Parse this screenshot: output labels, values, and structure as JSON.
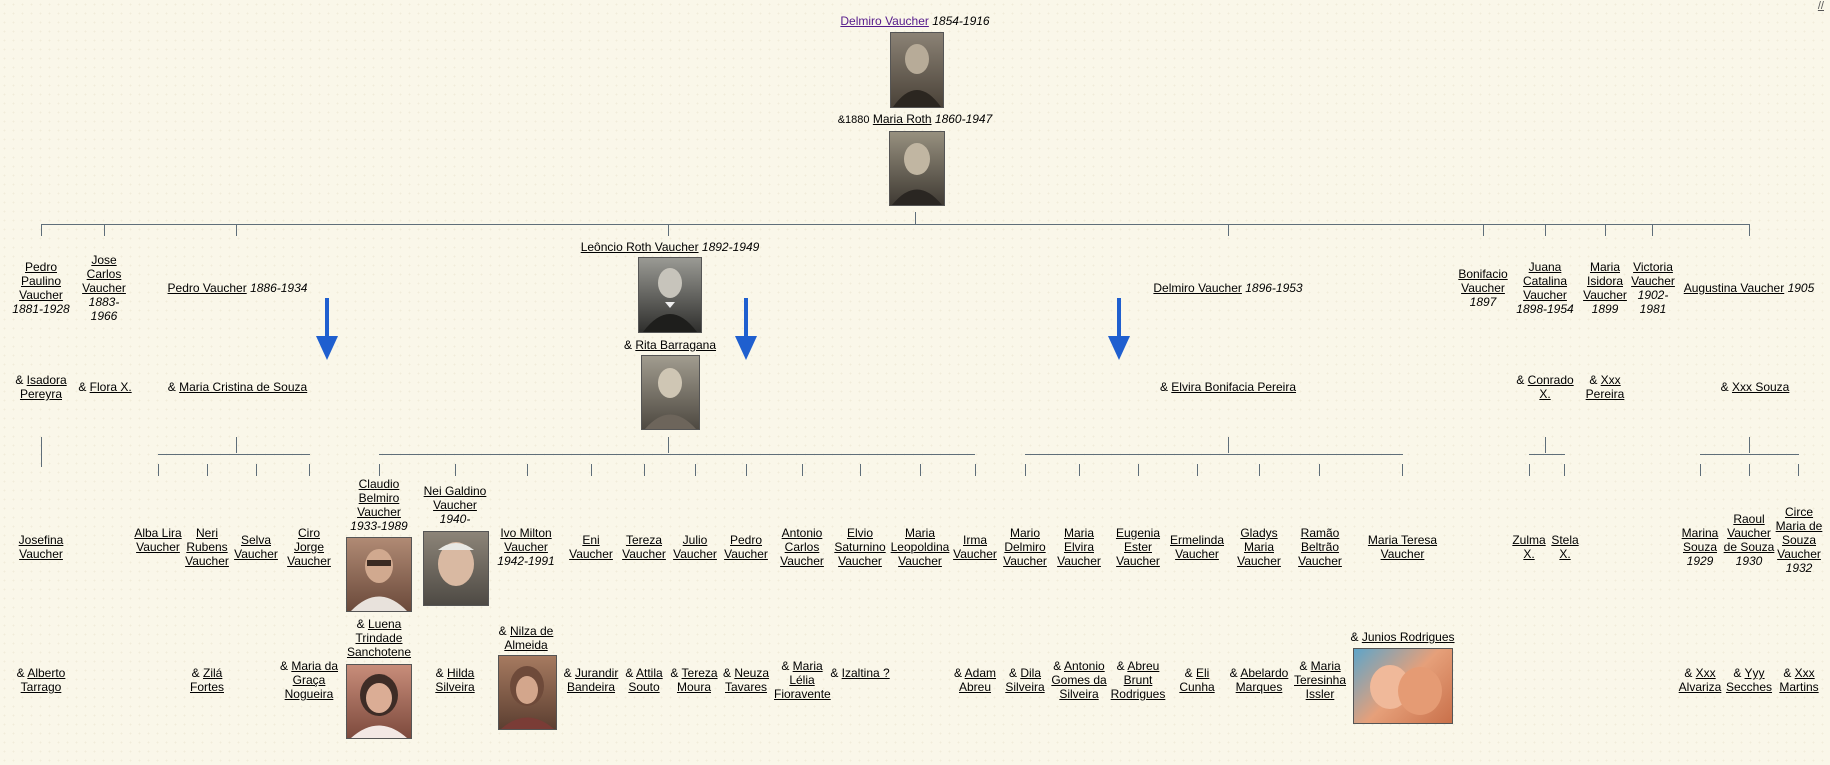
{
  "corner_link": "//",
  "root": {
    "name": "Delmiro Vaucher",
    "dates": "1854-1916",
    "marriage": "&1880",
    "spouse": "Maria Roth",
    "spouse_dates": "1860-1947"
  },
  "gen1": [
    {
      "name": "Pedro Paulino Vaucher",
      "dates": "1881-1928",
      "spouse": "Isadora Pereyra"
    },
    {
      "name": "Jose Carlos Vaucher",
      "dates": "1883-1966",
      "spouse": "Flora X."
    },
    {
      "name": "Pedro Vaucher",
      "dates": "1886-1934",
      "spouse": "Maria Cristina de Souza"
    },
    {
      "name": "Leôncio Roth Vaucher",
      "dates": "1892-1949",
      "spouse": "Rita Barragana"
    },
    {
      "name": "Delmiro Vaucher",
      "dates": "1896-1953",
      "spouse": "Elvira Bonifacia Pereira"
    },
    {
      "name": "Bonifacio Vaucher",
      "dates": "1897",
      "spouse": ""
    },
    {
      "name": "Juana Catalina Vaucher",
      "dates": "1898-1954",
      "spouse": "Conrado X."
    },
    {
      "name": "Maria Isidora Vaucher",
      "dates": "1899",
      "spouse": "Xxx Pereira"
    },
    {
      "name": "Victoria Vaucher",
      "dates": "1902-1981",
      "spouse": ""
    },
    {
      "name": "Augustina Vaucher",
      "dates": "1905",
      "spouse": "Xxx Souza"
    }
  ],
  "gen2": [
    {
      "name": "Josefina Vaucher",
      "dates": "",
      "spouse": "Alberto Tarrago"
    },
    {
      "name": "Alba Lira Vaucher",
      "dates": "",
      "spouse": ""
    },
    {
      "name": "Neri Rubens Vaucher",
      "dates": "",
      "spouse": "Zilá Fortes"
    },
    {
      "name": "Selva Vaucher",
      "dates": "",
      "spouse": ""
    },
    {
      "name": "Ciro Jorge Vaucher",
      "dates": "",
      "spouse": "Maria da Graça Nogueira"
    },
    {
      "name": "Claudio Belmiro Vaucher",
      "dates": "1933-1989",
      "spouse": "Luena Trindade Sanchotene"
    },
    {
      "name": "Nei Galdino Vaucher",
      "dates": "1940-",
      "spouse": "Hilda Silveira"
    },
    {
      "name": "Ivo Milton Vaucher",
      "dates": "1942-1991",
      "spouse": "Nilza de Almeida"
    },
    {
      "name": "Eni Vaucher",
      "dates": "",
      "spouse": "Jurandir Bandeira"
    },
    {
      "name": "Tereza Vaucher",
      "dates": "",
      "spouse": "Attila Souto"
    },
    {
      "name": "Julio Vaucher",
      "dates": "",
      "spouse": "Tereza Moura"
    },
    {
      "name": "Pedro Vaucher",
      "dates": "",
      "spouse": "Neuza Tavares"
    },
    {
      "name": "Antonio Carlos Vaucher",
      "dates": "",
      "spouse": "Maria Lélia Fioravente"
    },
    {
      "name": "Elvio Saturnino Vaucher",
      "dates": "",
      "spouse": "Izaltina ?"
    },
    {
      "name": "Maria Leopoldina Vaucher",
      "dates": "",
      "spouse": ""
    },
    {
      "name": "Irma Vaucher",
      "dates": "",
      "spouse": "Adam Abreu"
    },
    {
      "name": "Mario Delmiro Vaucher",
      "dates": "",
      "spouse": "Dila Silveira"
    },
    {
      "name": "Maria Elvira Vaucher",
      "dates": "",
      "spouse": "Antonio Gomes da Silveira"
    },
    {
      "name": "Eugenia Ester Vaucher",
      "dates": "",
      "spouse": "Abreu Brunt Rodrigues"
    },
    {
      "name": "Ermelinda Vaucher",
      "dates": "",
      "spouse": "Eli Cunha"
    },
    {
      "name": "Gladys Maria Vaucher",
      "dates": "",
      "spouse": "Abelardo Marques"
    },
    {
      "name": "Ramão Beltrão Vaucher",
      "dates": "",
      "spouse": "Maria Teresinha Issler"
    },
    {
      "name": "Maria Teresa Vaucher",
      "dates": "",
      "spouse": "Junios Rodrigues"
    },
    {
      "name": "Zulma X.",
      "dates": "",
      "spouse": ""
    },
    {
      "name": "Stela X.",
      "dates": "",
      "spouse": ""
    },
    {
      "name": "Marina Souza",
      "dates": "1929",
      "spouse": "Xxx Alvariza"
    },
    {
      "name": "Raoul Vaucher de Souza",
      "dates": "1930",
      "spouse": "Yyy Secches"
    },
    {
      "name": "Circe Maria de Souza Vaucher",
      "dates": "1932",
      "spouse": "Xxx Martins"
    }
  ],
  "colors": {
    "line": "#5f6e79",
    "arrow": "#1f5fcf",
    "background": "#faf7e9"
  }
}
